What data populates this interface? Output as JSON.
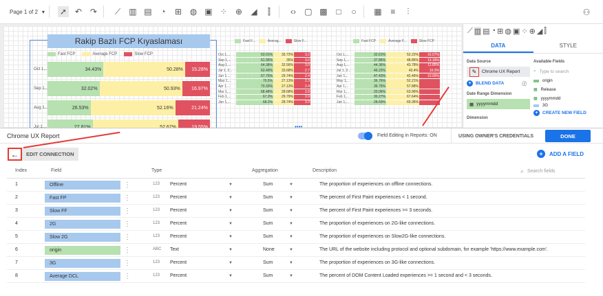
{
  "toolbar": {
    "page": "Page 1 of 2"
  },
  "chart": {
    "title": "Rakip Bazlı FCP Kıyaslaması",
    "legend": [
      {
        "label": "Fast FCP",
        "color": "#b7e1b0"
      },
      {
        "label": "Average FCP",
        "color": "#fdf0a6"
      },
      {
        "label": "Slow FCP",
        "color": "#e05260"
      }
    ],
    "rows": [
      {
        "cat": "Oct 1,...",
        "fast": "34.43%",
        "avg": "50.28%",
        "slow": "15.28%",
        "f": 34.43,
        "a": 50.28,
        "s": 15.28
      },
      {
        "cat": "Sep 1,...",
        "fast": "32.02%",
        "avg": "50.93%",
        "slow": "16.97%",
        "f": 32.02,
        "a": 50.93,
        "s": 16.97
      },
      {
        "cat": "Aug 1,...",
        "fast": "26.53%",
        "avg": "52.16%",
        "slow": "21.24%",
        "f": 26.53,
        "a": 52.16,
        "s": 21.24
      },
      {
        "cat": "Jul 1,...",
        "fast": "27.81%",
        "avg": "52.67%",
        "slow": "19.55%",
        "f": 27.81,
        "a": 52.67,
        "s": 19.55
      }
    ]
  },
  "mini1": {
    "legend": [
      "Fast F...",
      "Averag...",
      "Slow F..."
    ],
    "rows": [
      [
        "Oct 1,...",
        "63.01%",
        "33.72%",
        "3.2"
      ],
      [
        "Sep 1,...",
        "61.95%",
        "35%",
        "3.0"
      ],
      [
        "Aug 1,...",
        "64.38%",
        "32.56%",
        "3.0"
      ],
      [
        "Jul 1, 2...",
        "63.49%",
        "33.68%",
        "2.7"
      ],
      [
        "Jun 1,...",
        "67.75%",
        "29.74%",
        "2.4"
      ],
      [
        "May 1,...",
        "70.5%",
        "27.13%",
        "2.3"
      ],
      [
        "Apr 1,...",
        "70.33%",
        "27.13%",
        "2.4"
      ],
      [
        "Mar 1,...",
        "68.48%",
        "28.68%",
        "2.8"
      ],
      [
        "Feb 1,...",
        "67.3%",
        "29.79%",
        "2.9"
      ],
      [
        "Jan 1,...",
        "68.2%",
        "28.74%",
        "3.0"
      ]
    ]
  },
  "mini2": {
    "legend": [
      "Fast FCP",
      "Average F...",
      "Slow FCP"
    ],
    "rows": [
      [
        "Oct 1,...",
        "32.61%",
        "52.22%",
        "15.07%"
      ],
      [
        "Sep 1,...",
        "37.86%",
        "48.85%",
        "13.18%"
      ],
      [
        "Aug 1,...",
        "44.36%",
        "43.78%",
        "11.85%"
      ],
      [
        "Jul 1, 2...",
        "46.22%",
        "43.4%",
        "10.3%"
      ],
      [
        "Jun 1,...",
        "47.43%",
        "42.46%",
        "10.05%"
      ],
      [
        "May 1,...",
        "36.76%",
        "52.21%",
        ""
      ],
      [
        "Apr 1,...",
        "36.75%",
        "57.88%",
        ""
      ],
      [
        "Mar 1,...",
        "33.06%",
        "63.96%",
        ""
      ],
      [
        "Feb 1,...",
        "30.27%",
        "67.64%",
        ""
      ],
      [
        "Jan 1,...",
        "28.69%",
        "69.36%",
        ""
      ]
    ]
  },
  "right_panel": {
    "tab_data": "DATA",
    "tab_style": "STYLE",
    "data_source_label": "Data Source",
    "data_source": "Chrome UX Report",
    "blend": "BLEND DATA",
    "date_range_label": "Date Range Dimension",
    "date_range": "yyyymmdd",
    "dimension_label": "Dimension",
    "available_label": "Available Fields",
    "search_placeholder": "Type to search",
    "available": [
      "origin",
      "Release",
      "yyyymmdd",
      "3G"
    ],
    "create_field": "CREATE NEW FIELD"
  },
  "dock": {
    "title": "Chrome UX Report",
    "field_editing": "Field Editing in Reports: ON",
    "owner": "USING OWNER'S CREDENTIALS",
    "done": "DONE",
    "edit_connection": "EDIT CONNECTION",
    "add_field": "ADD A FIELD",
    "search": "Search fields",
    "headers": {
      "index": "Index",
      "field": "Field",
      "type": "Type",
      "aggregation": "Aggregation",
      "description": "Description"
    },
    "rows": [
      {
        "i": "1",
        "f": "Offline",
        "ti": "123",
        "t": "Percent",
        "a": "Sum",
        "d": "The proportion of experiences on offline connections."
      },
      {
        "i": "2",
        "f": "Fast FP",
        "ti": "123",
        "t": "Percent",
        "a": "Sum",
        "d": "The percent of First Paint experiences < 1 second."
      },
      {
        "i": "3",
        "f": "Slow FF",
        "ti": "123",
        "t": "Percent",
        "a": "Sum",
        "d": "The percent of First Paint experiences >= 3 seconds."
      },
      {
        "i": "4",
        "f": "2G",
        "ti": "123",
        "t": "Percent",
        "a": "Sum",
        "d": "The proportion of experiences on 2G-like connections."
      },
      {
        "i": "5",
        "f": "Slow 2G",
        "ti": "123",
        "t": "Percent",
        "a": "Sum",
        "d": "The proportion of experiences on Slow2G-like connections."
      },
      {
        "i": "6",
        "f": "origin",
        "ti": "ABC",
        "t": "Text",
        "a": "None",
        "d": "The URL of the website including protocol and optional subdomain, for example 'https://www.example.com'."
      },
      {
        "i": "7",
        "f": "3G",
        "ti": "123",
        "t": "Percent",
        "a": "Sum",
        "d": "The proportion of experiences on 3G-like connections."
      },
      {
        "i": "8",
        "f": "Average DCL",
        "ti": "123",
        "t": "Percent",
        "a": "Sum",
        "d": "The percent of DOM Content Loaded experiences >= 1 second and < 3 seconds."
      }
    ]
  }
}
